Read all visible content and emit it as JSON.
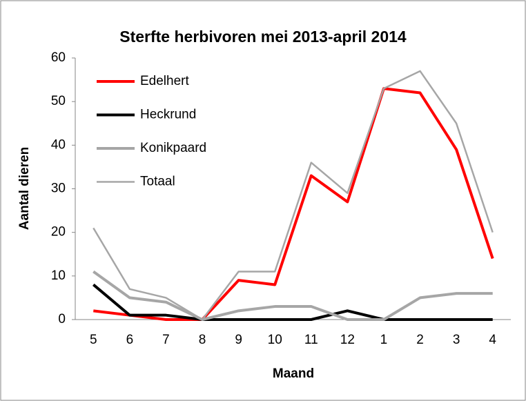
{
  "chart_data": {
    "type": "line",
    "title": "Sterfte herbivoren mei 2013-april 2014",
    "x_label": "Maand",
    "y_label": "Aantal dieren",
    "categories": [
      "5",
      "6",
      "7",
      "8",
      "9",
      "10",
      "11",
      "12",
      "1",
      "2",
      "3",
      "4"
    ],
    "series": [
      {
        "name": "Edelhert",
        "color": "#ff0000",
        "width": 4,
        "values": [
          2,
          1,
          0,
          0,
          9,
          8,
          33,
          27,
          53,
          52,
          39,
          14
        ]
      },
      {
        "name": "Heckrund",
        "color": "#000000",
        "width": 4,
        "values": [
          8,
          1,
          1,
          0,
          0,
          0,
          0,
          2,
          0,
          0,
          0,
          0
        ]
      },
      {
        "name": "Konikpaard",
        "color": "#a6a6a6",
        "width": 4,
        "values": [
          11,
          5,
          4,
          0,
          2,
          3,
          3,
          0,
          0,
          5,
          6,
          6
        ]
      },
      {
        "name": "Totaal",
        "color": "#a6a6a6",
        "width": 2.5,
        "values": [
          21,
          7,
          5,
          0,
          11,
          11,
          36,
          29,
          53,
          57,
          45,
          20
        ]
      }
    ],
    "ylim": [
      0,
      60
    ],
    "yticks": [
      0,
      10,
      20,
      30,
      40,
      50,
      60
    ],
    "grid": false,
    "legend": "upper left"
  }
}
